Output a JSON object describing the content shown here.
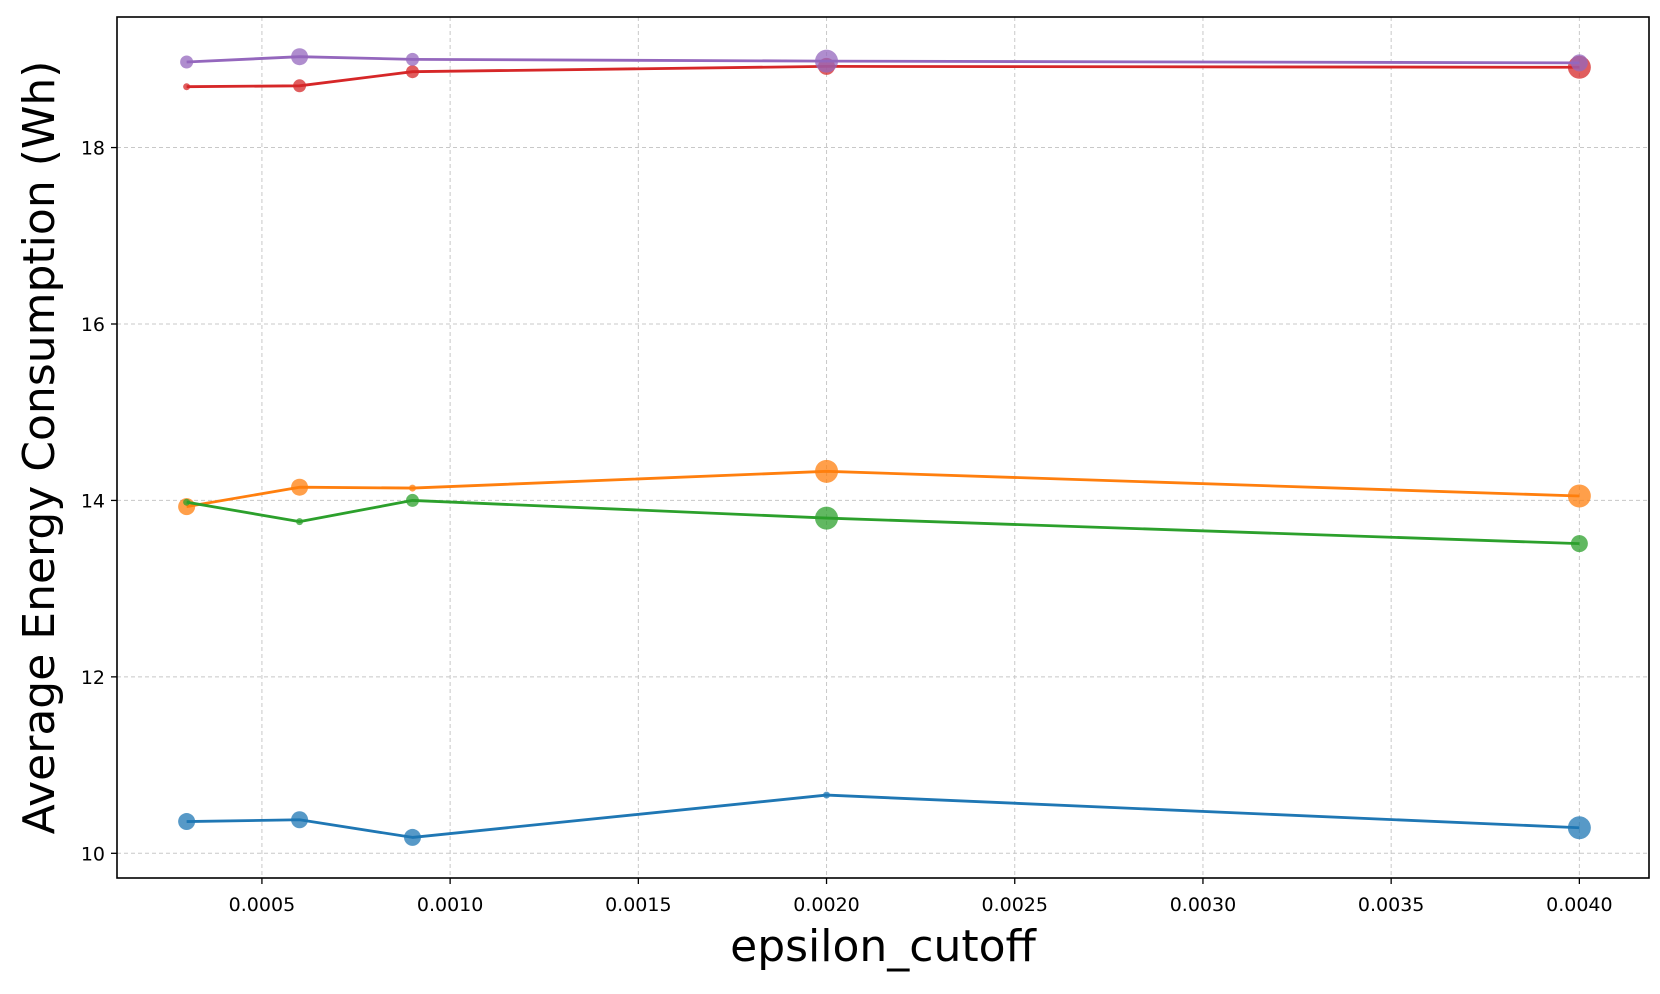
{
  "chart_data": {
    "type": "line",
    "title": "",
    "xlabel": "epsilon_cutoff",
    "ylabel": "Average Energy Consumption (Wh)",
    "xlim": [
      0.000115,
      0.004185
    ],
    "ylim": [
      9.72,
      19.48
    ],
    "xticks": [
      0.0005,
      0.001,
      0.0015,
      0.002,
      0.0025,
      0.003,
      0.0035,
      0.004
    ],
    "xtick_labels": [
      "0.0005",
      "0.0010",
      "0.0015",
      "0.0020",
      "0.0025",
      "0.0030",
      "0.0035",
      "0.0040"
    ],
    "yticks": [
      10,
      12,
      14,
      16,
      18
    ],
    "ytick_labels": [
      "10",
      "12",
      "14",
      "16",
      "18"
    ],
    "grid": true,
    "legend": "none",
    "x": [
      0.0003,
      0.0006,
      0.0009,
      0.002,
      0.004
    ],
    "series": [
      {
        "color": "#1f77b4",
        "values": [
          10.36,
          10.38,
          10.18,
          10.66,
          10.29
        ],
        "marker_size": [
          2,
          2,
          2,
          0,
          3
        ]
      },
      {
        "color": "#ff7f0e",
        "values": [
          13.93,
          14.15,
          14.14,
          14.33,
          14.05
        ],
        "marker_size": [
          2,
          2,
          0,
          3,
          3
        ]
      },
      {
        "color": "#2ca02c",
        "values": [
          13.98,
          13.76,
          14.0,
          13.8,
          13.51
        ],
        "marker_size": [
          0,
          0,
          1,
          3,
          2
        ]
      },
      {
        "color": "#d62728",
        "values": [
          18.69,
          18.7,
          18.86,
          18.92,
          18.91
        ],
        "marker_size": [
          0,
          1,
          1,
          2,
          3
        ]
      },
      {
        "color": "#9467bd",
        "values": [
          18.97,
          19.03,
          19.0,
          18.98,
          18.96
        ],
        "marker_size": [
          1,
          2,
          1,
          3,
          2
        ]
      }
    ]
  }
}
